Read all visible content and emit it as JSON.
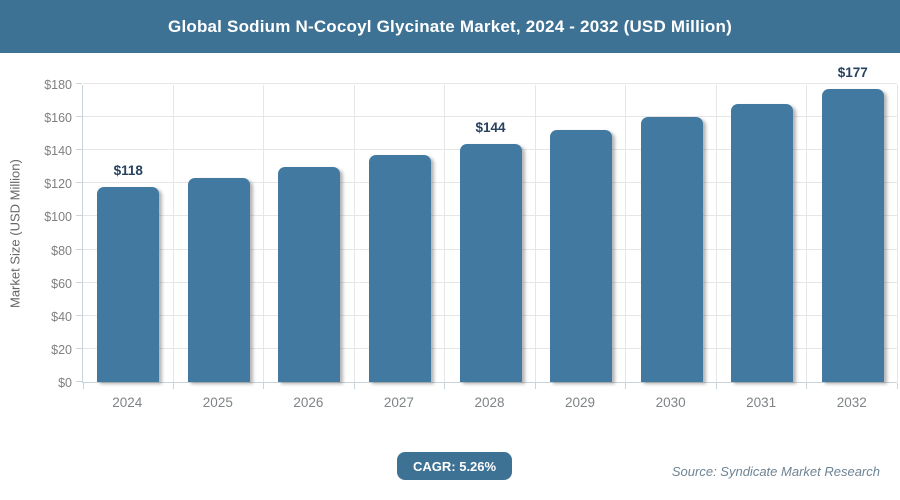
{
  "header": {
    "title": "Global Sodium N-Cocoyl Glycinate Market, 2024 - 2032 (USD Million)"
  },
  "chart_data": {
    "type": "bar",
    "title": "Global Sodium N-Cocoyl Glycinate Market, 2024 - 2032 (USD Million)",
    "categories": [
      "2024",
      "2025",
      "2026",
      "2027",
      "2028",
      "2029",
      "2030",
      "2031",
      "2032"
    ],
    "values": [
      118,
      123,
      130,
      137,
      144,
      152,
      160,
      168,
      177
    ],
    "point_labels": [
      "$118",
      null,
      null,
      null,
      "$144",
      null,
      null,
      null,
      "$177"
    ],
    "xlabel": "",
    "ylabel": "Market Size (USD Million)",
    "ylim": [
      0,
      180
    ],
    "yticks": [
      {
        "value": 0,
        "label": "$0"
      },
      {
        "value": 20,
        "label": "$20"
      },
      {
        "value": 40,
        "label": "$40"
      },
      {
        "value": 60,
        "label": "$60"
      },
      {
        "value": 80,
        "label": "$80"
      },
      {
        "value": 100,
        "label": "$100"
      },
      {
        "value": 120,
        "label": "$120"
      },
      {
        "value": 140,
        "label": "$140"
      },
      {
        "value": 160,
        "label": "$160"
      },
      {
        "value": 180,
        "label": "$180"
      }
    ],
    "grid": true,
    "legend": false,
    "bar_color": "#4179a0"
  },
  "footer": {
    "cagr_label": "CAGR: 5.26%",
    "source": "Source: Syndicate Market Research"
  },
  "colors": {
    "header_bg": "#3e7294",
    "bar": "#4179a0",
    "data_label": "#27425f",
    "axis_text": "#808080",
    "gridline": "#e6e6e6",
    "source_text": "#6e8494"
  }
}
